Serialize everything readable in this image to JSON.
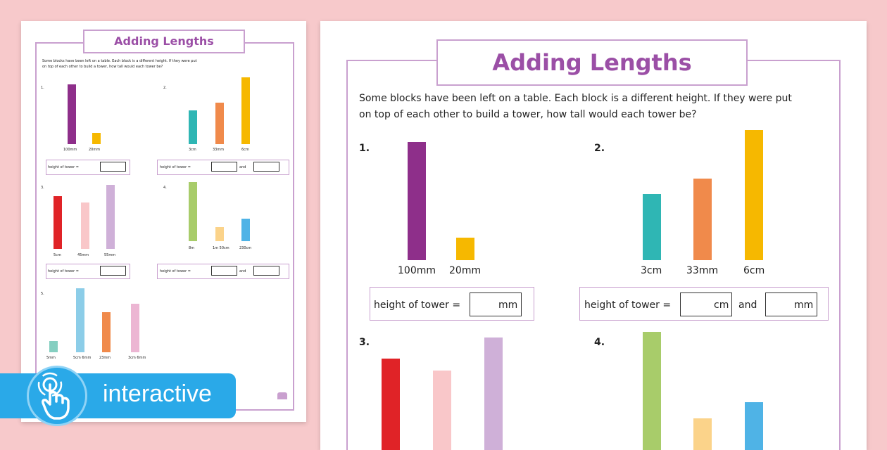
{
  "worksheet": {
    "title": "Adding Lengths",
    "intro_line1": "Some blocks have been left on a table. Each block is a different height. If they were put",
    "intro_line2": "on top of each other to build a tower, how tall would each tower be?",
    "q1": {
      "num": "1.",
      "labels": [
        "100mm",
        "20mm"
      ],
      "answer_label": "height of tower =",
      "unit1": "mm"
    },
    "q2": {
      "num": "2.",
      "labels": [
        "3cm",
        "33mm",
        "6cm"
      ],
      "answer_label": "height of tower =",
      "unit1": "cm",
      "and": "and",
      "unit2": "mm"
    },
    "q3": {
      "num": "3.",
      "labels": [
        "5cm",
        "45mm",
        "55mm"
      ],
      "answer_label": "height of tower =",
      "unit1": "mm"
    },
    "q4": {
      "num": "4.",
      "labels": [
        "8m",
        "1m 50cm",
        "230cm"
      ],
      "answer_label": "height of tower =",
      "unit1": "m",
      "and": "and",
      "unit2": "cm"
    },
    "q5": {
      "num": "5.",
      "labels": [
        "5mm",
        "5cm 6mm",
        "23mm",
        "3cm 6mm"
      ]
    }
  },
  "badge": {
    "label": "interactive",
    "icon": "touch-hand-icon"
  },
  "colors": {
    "background": "#f7c9cb",
    "frame": "#c9a0cf",
    "title": "#9b4fa6",
    "purple": "#8e2f8a",
    "yellow": "#f6b800",
    "teal": "#2fb6b4",
    "orange": "#f08a4b",
    "red": "#e02327",
    "pink": "#f9c7c9",
    "lilac": "#cfb0d8",
    "green": "#a8cc6a",
    "peach": "#fbd38a",
    "blue": "#4fb3e6",
    "lightblue": "#8ccde8",
    "mint": "#85cfc1",
    "rose": "#ecb6d3",
    "badge": "#2aa9e8"
  }
}
